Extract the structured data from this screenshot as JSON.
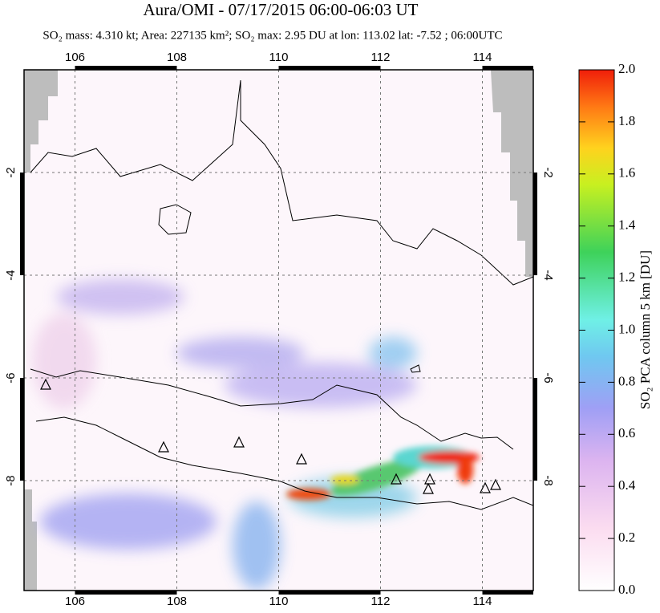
{
  "title": "Aura/OMI - 07/17/2015 06:00-06:03 UT",
  "subtitle": "SO₂ mass: 4.310 kt; Area: 227135 km²; SO₂ max: 2.95 DU at lon: 113.02 lat: -7.52 ; 06:00UTC",
  "map": {
    "xlim": [
      105,
      115
    ],
    "ylim": [
      -10.14,
      0
    ],
    "xticks": [
      106,
      108,
      110,
      112,
      114
    ],
    "yticks": [
      -2,
      -4,
      -6,
      -8
    ],
    "grid": true
  },
  "colorbar": {
    "label": "SO₂ PCA column 5 km [DU]",
    "lim": [
      0,
      2
    ],
    "ticks": [
      {
        "value": 0,
        "label": "0.0"
      },
      {
        "value": 0.2,
        "label": "0.2"
      },
      {
        "value": 0.4,
        "label": "0.4"
      },
      {
        "value": 0.6,
        "label": "0.6"
      },
      {
        "value": 0.8,
        "label": "0.8"
      },
      {
        "value": 1,
        "label": "1.0"
      },
      {
        "value": 1.2,
        "label": "1.2"
      },
      {
        "value": 1.4,
        "label": "1.4"
      },
      {
        "value": 1.6,
        "label": "1.6"
      },
      {
        "value": 1.8,
        "label": "1.8"
      },
      {
        "value": 2,
        "label": "2.0"
      }
    ]
  }
}
